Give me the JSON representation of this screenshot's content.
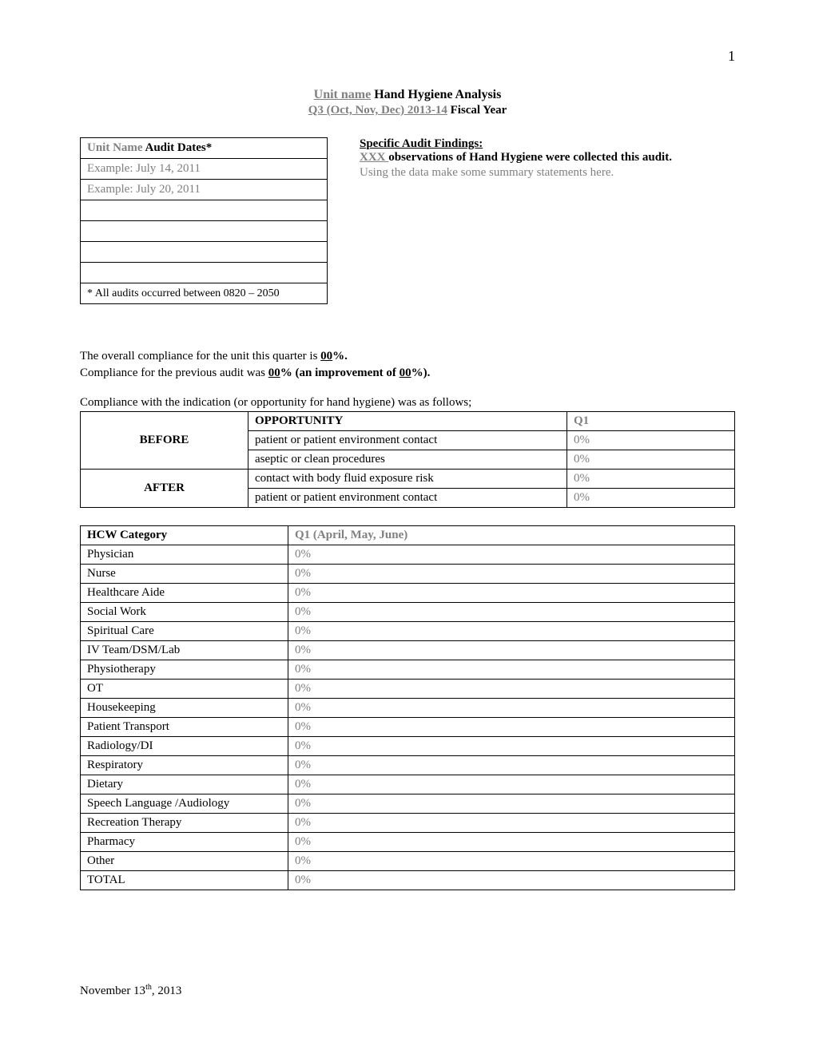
{
  "page_number": "1",
  "title": {
    "unit_name_placeholder": "Unit name",
    "title_suffix": " Hand Hygiene Analysis",
    "period_placeholder": "Q3 (Oct, Nov, Dec) 2013-14",
    "period_suffix": " Fiscal Year"
  },
  "audit_dates_table": {
    "header_placeholder": "Unit Name",
    "header_suffix": " Audit Dates*",
    "rows": [
      "Example: July 14, 2011",
      "Example: July 20, 2011",
      "",
      "",
      "",
      ""
    ],
    "footnote": "* All audits occurred between 0820 – 2050"
  },
  "findings": {
    "heading": "Specific Audit Findings:",
    "xxx_placeholder": "XXX ",
    "observations_text": "observations of Hand Hygiene were collected this audit.",
    "note": "Using the data make some summary statements here."
  },
  "compliance": {
    "line1_pre": "The overall compliance for the unit this quarter is ",
    "line1_val": "00",
    "line1_post": "%.",
    "line2_pre": "Compliance for the previous audit was ",
    "line2_val": "00",
    "line2_mid": "% (an ",
    "line2_bold": "improvement of ",
    "line2_val2": "00",
    "line2_post": "%)."
  },
  "compliance_intro": "Compliance with the indication (or opportunity for hand hygiene) was as follows;",
  "opportunity_table": {
    "before_label": "BEFORE",
    "after_label": "AFTER",
    "opp_header": "OPPORTUNITY",
    "q_header": "Q1",
    "rows": [
      {
        "label": "patient or patient environment contact",
        "value": "0%"
      },
      {
        "label": "aseptic or clean procedures",
        "value": "0%"
      },
      {
        "label": "contact with body fluid exposure risk",
        "value": "0%"
      },
      {
        "label": "patient or patient environment contact",
        "value": "0%"
      }
    ]
  },
  "hcw_table": {
    "cat_header": "HCW Category",
    "q_header": "Q1 (April, May, June)",
    "rows": [
      {
        "cat": "Physician",
        "val": "0%"
      },
      {
        "cat": "Nurse",
        "val": "0%"
      },
      {
        "cat": "Healthcare Aide",
        "val": "0%"
      },
      {
        "cat": "Social Work",
        "val": "0%"
      },
      {
        "cat": "Spiritual Care",
        "val": "0%"
      },
      {
        "cat": "IV Team/DSM/Lab",
        "val": "0%"
      },
      {
        "cat": "Physiotherapy",
        "val": "0%"
      },
      {
        "cat": "OT",
        "val": "0%"
      },
      {
        "cat": "Housekeeping",
        "val": "0%"
      },
      {
        "cat": "Patient Transport",
        "val": "0%"
      },
      {
        "cat": "Radiology/DI",
        "val": "0%"
      },
      {
        "cat": "Respiratory",
        "val": "0%"
      },
      {
        "cat": "Dietary",
        "val": "0%"
      },
      {
        "cat": "Speech Language /Audiology",
        "val": "0%"
      },
      {
        "cat": "Recreation Therapy",
        "val": "0%"
      },
      {
        "cat": "Pharmacy",
        "val": "0%"
      },
      {
        "cat": "Other",
        "val": "0%"
      },
      {
        "cat": "TOTAL",
        "val": "0%"
      }
    ]
  },
  "footer_date_pre": "November 13",
  "footer_date_sup": "th",
  "footer_date_post": ", 2013"
}
